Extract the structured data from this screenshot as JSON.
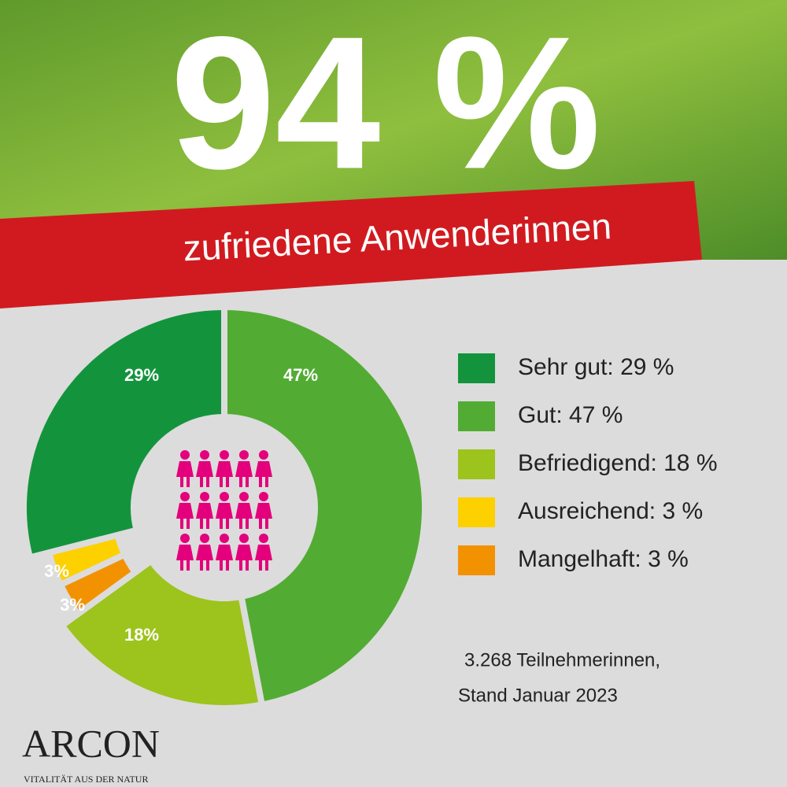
{
  "chart_data": {
    "type": "pie",
    "donut": true,
    "title": "94 %",
    "subtitle": "zufriedene Anwenderinnen",
    "categories": [
      "Sehr gut: 29 %",
      "Gut: 47 %",
      "Befriedigend: 18 %",
      "Ausreichend: 3 %",
      "Mangelhaft: 3 %"
    ],
    "values": [
      29,
      47,
      18,
      3,
      3
    ],
    "value_labels": [
      "29%",
      "47%",
      "18%",
      "3%",
      "3%"
    ],
    "colors": [
      "#13943c",
      "#52ac33",
      "#9dc31d",
      "#fdd000",
      "#f39200"
    ],
    "footnote": [
      "3.268  Teilnehmerinnen,",
      "Stand Januar 2023"
    ]
  },
  "logo": {
    "name": "ARCON",
    "tagline": "VITALITÄT AUS DER NATUR"
  }
}
